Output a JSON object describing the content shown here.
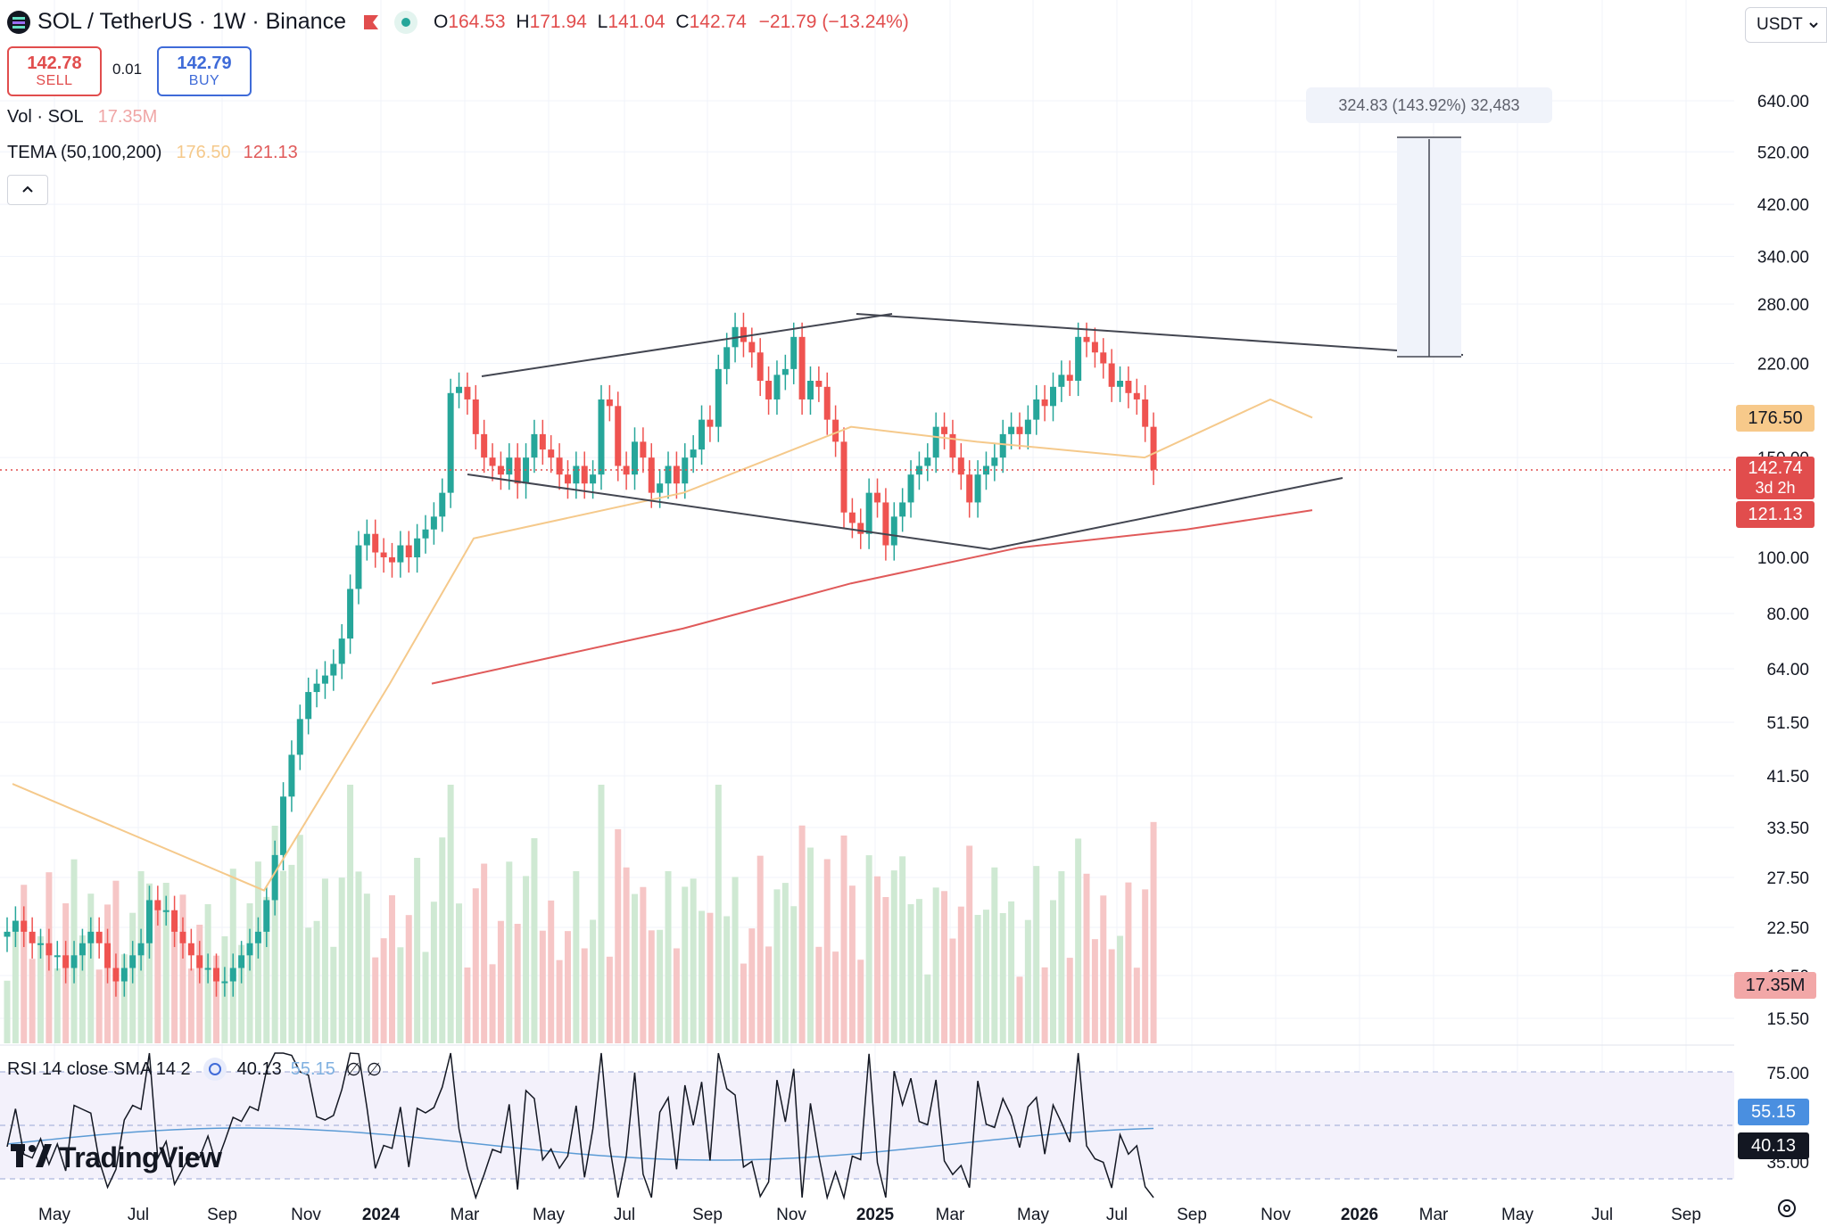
{
  "header": {
    "title": "SOL / TetherUS · 1W · Binance",
    "ohlc": {
      "o_label": "O",
      "o_value": "164.53",
      "h_label": "H",
      "h_value": "171.94",
      "l_label": "L",
      "l_value": "141.04",
      "c_label": "C",
      "c_value": "142.74",
      "change": "−21.79 (−13.24%)"
    },
    "currency": "USDT"
  },
  "trade": {
    "sell_price": "142.78",
    "sell_label": "SELL",
    "spread": "0.01",
    "buy_price": "142.79",
    "buy_label": "BUY"
  },
  "indicators": {
    "vol_label": "Vol · SOL",
    "vol_value": "17.35M",
    "tema_label": "TEMA (50,100,200)",
    "tema_value1": "176.50",
    "tema_value2": "121.13",
    "rsi_label": "RSI 14 close SMA 14 2",
    "rsi_value": "40.13",
    "rsi_sma_value": "55.15"
  },
  "measure": {
    "text": "324.83 (143.92%) 32,483"
  },
  "price_tags": {
    "tema1": "176.50",
    "last": "142.74",
    "countdown": "3d 2h",
    "tema2": "121.13",
    "volume": "17.35M",
    "rsi_sma": "55.15",
    "rsi": "40.13"
  },
  "branding": {
    "name": "TradingView"
  },
  "colors": {
    "up": "#26a69a",
    "down": "#ef5350",
    "tema_fast": "#f5c98b",
    "tema_slow": "#e05a5a",
    "rsi": "#131722",
    "rsi_sma": "#5b9bd5"
  },
  "chart_data": {
    "type": "candlestick",
    "scale": "log",
    "y_ticks": [
      "640.00",
      "520.00",
      "420.00",
      "340.00",
      "280.00",
      "220.00",
      "150.00",
      "100.00",
      "80.00",
      "64.00",
      "51.50",
      "41.50",
      "33.50",
      "27.50",
      "22.50",
      "18.50",
      "15.50"
    ],
    "x_ticks": [
      "May",
      "Jul",
      "Sep",
      "Nov",
      "2024",
      "Mar",
      "May",
      "Jul",
      "Sep",
      "Nov",
      "2025",
      "Mar",
      "May",
      "Jul",
      "Sep",
      "Nov",
      "2026",
      "Mar",
      "May",
      "Jul",
      "Sep"
    ],
    "rsi_ticks": [
      "75.00",
      "35.00"
    ],
    "ohlc_close_path": [
      22,
      23,
      22,
      21,
      21,
      20,
      20,
      19,
      20,
      21,
      22,
      21,
      19,
      18,
      19,
      20,
      21,
      25,
      24,
      24,
      22,
      21,
      20,
      19,
      19,
      18,
      18,
      19,
      20,
      21,
      22,
      25,
      30,
      38,
      45,
      52,
      58,
      60,
      62,
      65,
      72,
      88,
      105,
      110,
      102,
      100,
      98,
      105,
      100,
      108,
      112,
      118,
      130,
      195,
      200,
      190,
      165,
      150,
      145,
      140,
      150,
      135,
      150,
      165,
      155,
      150,
      140,
      135,
      145,
      135,
      140,
      190,
      185,
      145,
      140,
      160,
      150,
      130,
      135,
      145,
      135,
      150,
      155,
      175,
      170,
      215,
      235,
      255,
      240,
      230,
      205,
      190,
      210,
      215,
      245,
      190,
      205,
      200,
      175,
      160,
      120,
      115,
      110,
      130,
      125,
      105,
      118,
      125,
      140,
      145,
      150,
      170,
      165,
      150,
      140,
      125,
      140,
      145,
      150,
      165,
      170,
      165,
      175,
      190,
      185,
      200,
      210,
      205,
      245,
      240,
      230,
      220,
      200,
      205,
      195,
      190,
      170,
      142.74
    ],
    "tema_fast": [
      {
        "x": "2023-04",
        "y": 40
      },
      {
        "x": "2023-10",
        "y": 26
      },
      {
        "x": "2024-01",
        "y": 60
      },
      {
        "x": "2024-03",
        "y": 108
      },
      {
        "x": "2024-08",
        "y": 130
      },
      {
        "x": "2024-12",
        "y": 170
      },
      {
        "x": "2025-03",
        "y": 160
      },
      {
        "x": "2025-07",
        "y": 150
      },
      {
        "x": "2025-10",
        "y": 190
      },
      {
        "x": "2025-11",
        "y": 176.5
      }
    ],
    "tema_slow": [
      {
        "x": "2024-02",
        "y": 60
      },
      {
        "x": "2024-08",
        "y": 75
      },
      {
        "x": "2024-12",
        "y": 90
      },
      {
        "x": "2025-04",
        "y": 104
      },
      {
        "x": "2025-08",
        "y": 112
      },
      {
        "x": "2025-11",
        "y": 121.13
      }
    ],
    "rsi_sma_last": 55.15,
    "rsi_last": 40.13
  }
}
